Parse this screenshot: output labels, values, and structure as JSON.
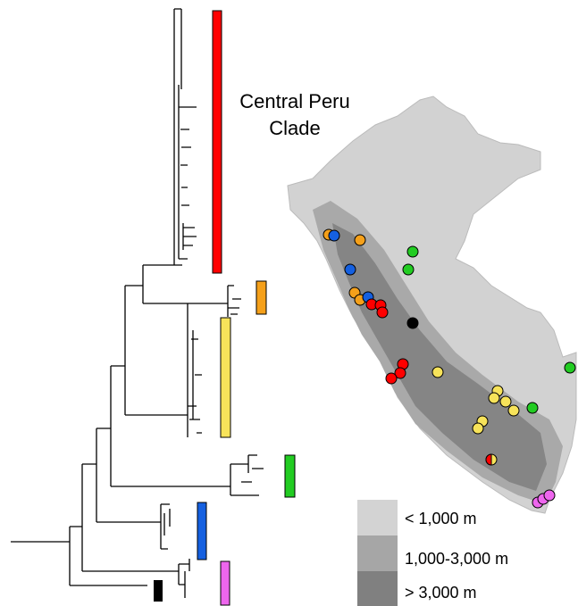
{
  "annotation": {
    "lines": [
      "Central Peru",
      "Clade"
    ]
  },
  "legend": {
    "items": [
      {
        "label": "< 1,000 m"
      },
      {
        "label": "1,000-3,000 m"
      },
      {
        "label": "> 3,000 m"
      }
    ]
  }
}
